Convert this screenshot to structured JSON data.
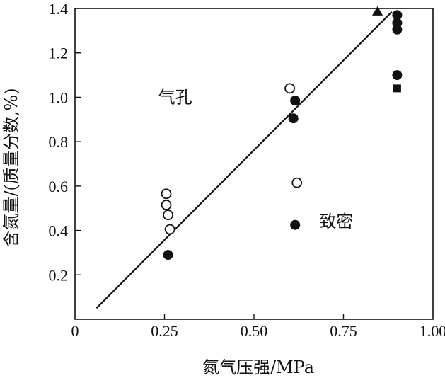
{
  "chart_data": {
    "type": "scatter",
    "xlabel": "氮气压强/MPa",
    "ylabel": "含氮量/(质量分数,%)",
    "xlim": [
      0,
      1.0
    ],
    "ylim": [
      0,
      1.4
    ],
    "x_ticks": [
      {
        "value": 0,
        "label": "0"
      },
      {
        "value": 0.25,
        "label": "0.25"
      },
      {
        "value": 0.5,
        "label": "0.50"
      },
      {
        "value": 0.75,
        "label": "0.75"
      },
      {
        "value": 1.0,
        "label": "1.00"
      }
    ],
    "y_ticks": [
      {
        "value": 0.2,
        "label": "0.2"
      },
      {
        "value": 0.4,
        "label": "0.4"
      },
      {
        "value": 0.6,
        "label": "0.6"
      },
      {
        "value": 0.8,
        "label": "0.8"
      },
      {
        "value": 1.0,
        "label": "1.0"
      },
      {
        "value": 1.2,
        "label": "1.2"
      },
      {
        "value": 1.4,
        "label": "1.4"
      }
    ],
    "grid": false,
    "annotations": [
      {
        "text": "气孔",
        "x": 0.28,
        "y": 1.0
      },
      {
        "text": "致密",
        "x": 0.73,
        "y": 0.44
      }
    ],
    "series": [
      {
        "marker": "circle-open",
        "points": [
          [
            0.255,
            0.565
          ],
          [
            0.255,
            0.515
          ],
          [
            0.26,
            0.47
          ],
          [
            0.265,
            0.405
          ],
          [
            0.6,
            1.04
          ],
          [
            0.62,
            0.615
          ]
        ]
      },
      {
        "marker": "circle-filled",
        "points": [
          [
            0.26,
            0.29
          ],
          [
            0.615,
            0.985
          ],
          [
            0.61,
            0.905
          ],
          [
            0.615,
            0.425
          ],
          [
            0.9,
            1.37
          ],
          [
            0.9,
            1.335
          ],
          [
            0.9,
            1.305
          ],
          [
            0.9,
            1.1
          ]
        ]
      },
      {
        "marker": "triangle-filled",
        "points": [
          [
            0.845,
            1.385
          ]
        ]
      },
      {
        "marker": "square-filled",
        "points": [
          [
            0.9,
            1.04
          ]
        ]
      },
      {
        "marker": "line",
        "points": [
          [
            0.06,
            0.05
          ],
          [
            0.885,
            1.385
          ]
        ]
      }
    ]
  }
}
